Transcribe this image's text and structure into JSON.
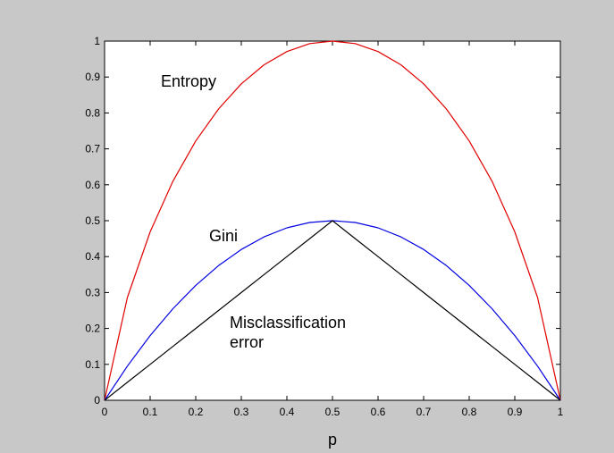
{
  "chart_data": {
    "type": "line",
    "title": "",
    "xlabel": "p",
    "ylabel": "",
    "xlim": [
      0,
      1
    ],
    "ylim": [
      0,
      1
    ],
    "grid": false,
    "legend": "none",
    "x_ticks": [
      "0",
      "0.1",
      "0.2",
      "0.3",
      "0.4",
      "0.5",
      "0.6",
      "0.7",
      "0.8",
      "0.9",
      "1"
    ],
    "y_ticks": [
      "0",
      "0.1",
      "0.2",
      "0.3",
      "0.4",
      "0.5",
      "0.6",
      "0.7",
      "0.8",
      "0.9",
      "1"
    ],
    "x": [
      0,
      0.05,
      0.1,
      0.15,
      0.2,
      0.25,
      0.3,
      0.35,
      0.4,
      0.45,
      0.5,
      0.55,
      0.6,
      0.65,
      0.7,
      0.75,
      0.8,
      0.85,
      0.9,
      0.95,
      1
    ],
    "series": [
      {
        "key": "entropy",
        "color": "#e00000",
        "values": [
          0,
          0.286,
          0.469,
          0.61,
          0.722,
          0.811,
          0.881,
          0.934,
          0.971,
          0.993,
          1,
          0.993,
          0.971,
          0.934,
          0.881,
          0.811,
          0.722,
          0.61,
          0.469,
          0.286,
          0
        ]
      },
      {
        "key": "gini",
        "color": "#0000e0",
        "values": [
          0,
          0.095,
          0.18,
          0.255,
          0.32,
          0.375,
          0.42,
          0.455,
          0.48,
          0.495,
          0.5,
          0.495,
          0.48,
          0.455,
          0.42,
          0.375,
          0.32,
          0.255,
          0.18,
          0.095,
          0
        ]
      },
      {
        "key": "misclassification",
        "color": "#000000",
        "values": [
          0,
          0.05,
          0.1,
          0.15,
          0.2,
          0.25,
          0.3,
          0.35,
          0.4,
          0.45,
          0.5,
          0.45,
          0.4,
          0.35,
          0.3,
          0.25,
          0.2,
          0.15,
          0.1,
          0.05,
          0
        ]
      }
    ],
    "annotations": [
      {
        "key": "entropy",
        "lines": [
          "Entropy"
        ]
      },
      {
        "key": "gini",
        "lines": [
          "Gini"
        ]
      },
      {
        "key": "misclassification",
        "lines": [
          "Misclassification",
          "error"
        ]
      }
    ]
  }
}
